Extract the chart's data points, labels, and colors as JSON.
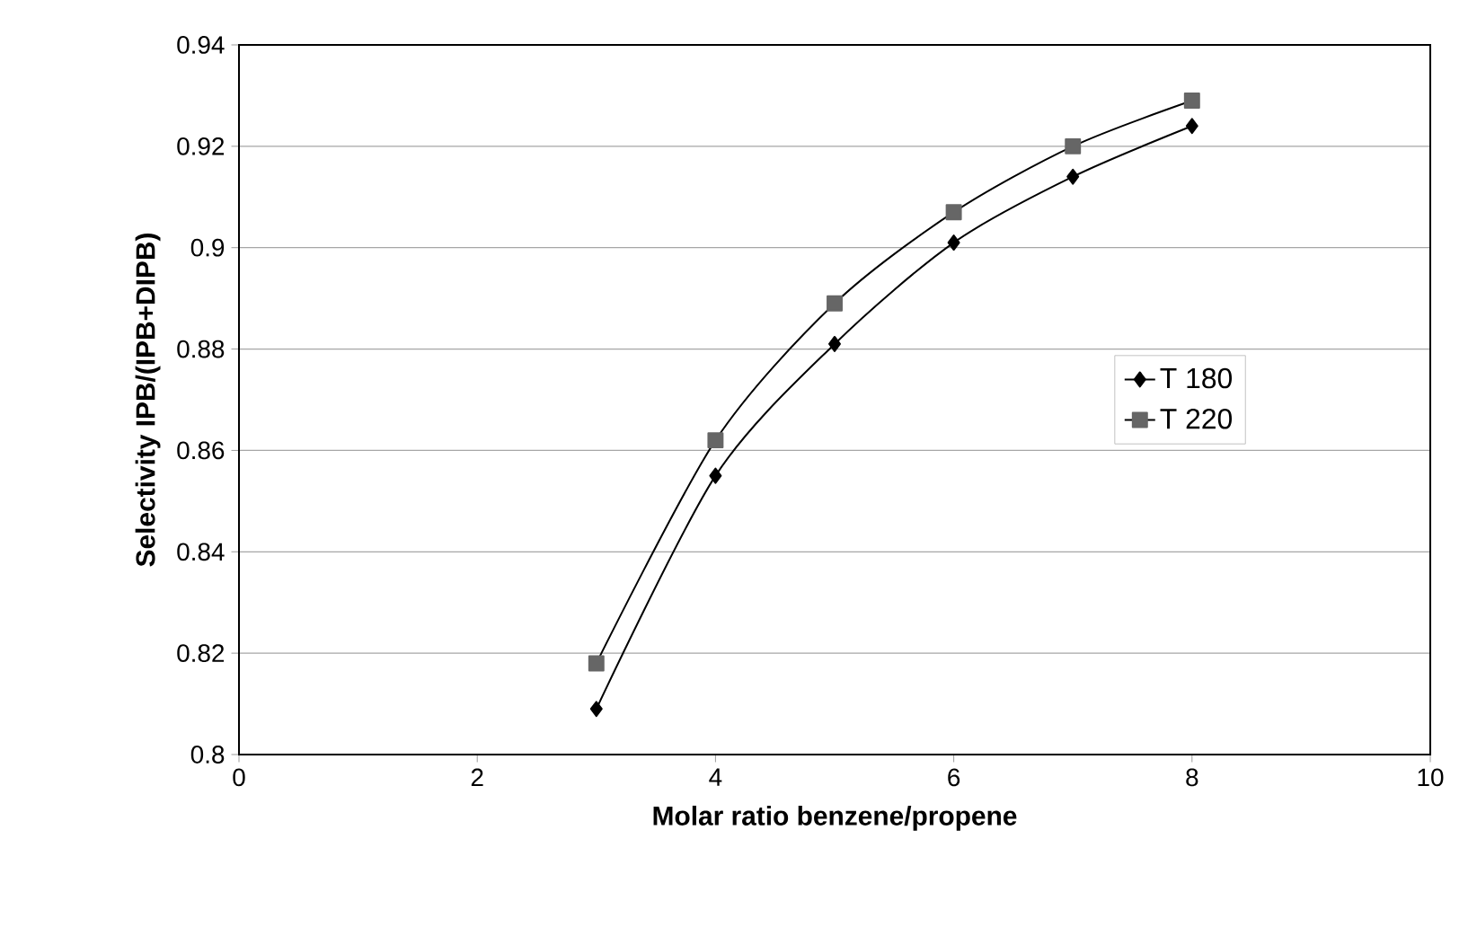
{
  "chart_data": {
    "type": "line",
    "xlabel": "Molar ratio benzene/propene",
    "ylabel": "Selectivity IPB/(IPB+DIPB)",
    "xlim": [
      0,
      10
    ],
    "xticks": [
      0,
      2,
      4,
      6,
      8,
      10
    ],
    "ylim": [
      0.8,
      0.94
    ],
    "yticks": [
      0.8,
      0.82,
      0.84,
      0.86,
      0.88,
      0.9,
      0.92,
      0.94
    ],
    "grid": "y",
    "legend": "right",
    "series": [
      {
        "name": "T 180",
        "color": "#000000",
        "marker": "diamond",
        "x": [
          3,
          4,
          5,
          6,
          7,
          8
        ],
        "values": [
          0.809,
          0.855,
          0.881,
          0.901,
          0.914,
          0.924
        ]
      },
      {
        "name": "T 220",
        "color": "#666666",
        "marker": "square",
        "x": [
          3,
          4,
          5,
          6,
          7,
          8
        ],
        "values": [
          0.818,
          0.862,
          0.889,
          0.907,
          0.92,
          0.929
        ]
      }
    ]
  }
}
